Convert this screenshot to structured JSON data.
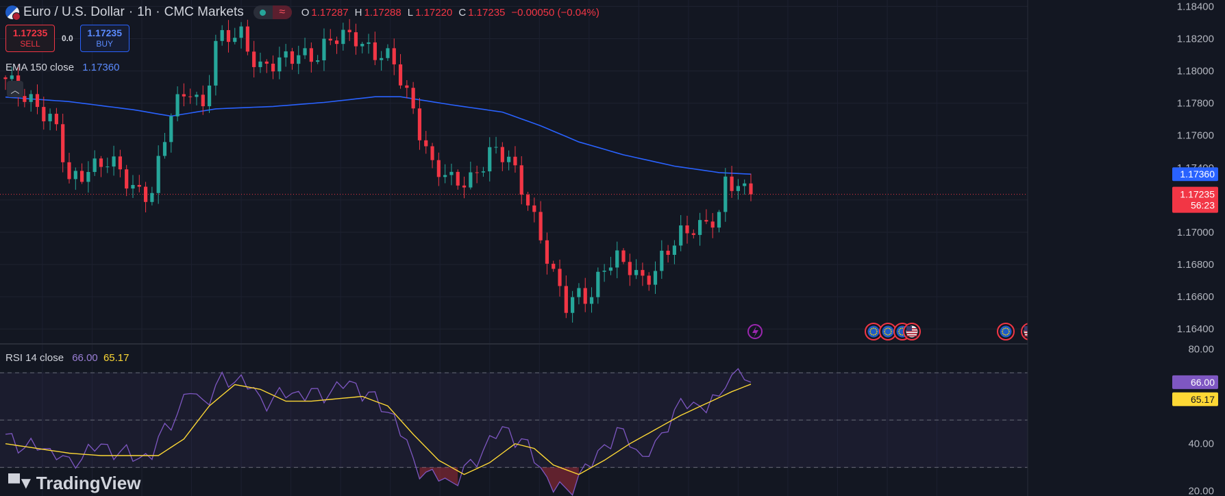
{
  "header": {
    "symbol": "Euro / U.S. Dollar",
    "interval": "1h",
    "source": "CMC Markets",
    "open_key": "O",
    "open": "1.17287",
    "high_key": "H",
    "high": "1.17288",
    "low_key": "L",
    "low": "1.17220",
    "close_key": "C",
    "close": "1.17235",
    "change": "−0.00050 (−0.04%)",
    "market_status": "open",
    "wave_icon": "≈"
  },
  "trade": {
    "sell_price": "1.17235",
    "sell_label": "SELL",
    "spread": "0.0",
    "buy_price": "1.17235",
    "buy_label": "BUY"
  },
  "ema": {
    "label": "EMA 150 close",
    "value": "1.17360"
  },
  "rsi": {
    "label": "RSI 14 close",
    "value": "66.00",
    "ma_value": "65.17"
  },
  "price_axis": {
    "ticks": [
      "1.18400",
      "1.18200",
      "1.18000",
      "1.17800",
      "1.17600",
      "1.17400",
      "1.17000",
      "1.16800",
      "1.16600",
      "1.16400"
    ],
    "current_label": "1.17235",
    "countdown": "56:23",
    "ema_label": "1.17360"
  },
  "rsi_axis": {
    "ticks": [
      "80.00",
      "40.00",
      "20.00"
    ]
  },
  "logo": {
    "text": "TradingView"
  },
  "colors": {
    "background": "#131722",
    "up": "#26a69a",
    "down": "#f23645",
    "ema": "#2962ff",
    "rsi": "#7e57c2",
    "rsi_ma": "#fdd835",
    "rsi_band": "#7e57c2"
  },
  "chart_data": [
    {
      "type": "candlestick",
      "title": "Euro / U.S. Dollar · 1h · CMC Markets",
      "ylim": [
        1.16316,
        1.1844
      ],
      "last_price": 1.17235,
      "n_bars": 118,
      "close_path": [
        [
          0,
          1.1792
        ],
        [
          5,
          1.1781
        ],
        [
          8,
          1.1762
        ],
        [
          10,
          1.173
        ],
        [
          13,
          1.1742
        ],
        [
          16,
          1.1743
        ],
        [
          20,
          1.1728
        ],
        [
          23,
          1.1726
        ],
        [
          26,
          1.1772
        ],
        [
          29,
          1.1791
        ],
        [
          31,
          1.1778
        ],
        [
          33,
          1.1816
        ],
        [
          37,
          1.1823
        ],
        [
          40,
          1.1803
        ],
        [
          43,
          1.1803
        ],
        [
          46,
          1.1812
        ],
        [
          49,
          1.1811
        ],
        [
          52,
          1.1819
        ],
        [
          55,
          1.1823
        ],
        [
          58,
          1.1811
        ],
        [
          61,
          1.1803
        ],
        [
          64,
          1.1778
        ],
        [
          67,
          1.174
        ],
        [
          70,
          1.173
        ],
        [
          73,
          1.1735
        ],
        [
          76,
          1.1748
        ],
        [
          79,
          1.1745
        ],
        [
          82,
          1.1722
        ],
        [
          84,
          1.1696
        ],
        [
          86,
          1.167
        ],
        [
          88,
          1.1655
        ],
        [
          90,
          1.1664
        ],
        [
          92,
          1.1662
        ],
        [
          94,
          1.1676
        ],
        [
          96,
          1.1682
        ],
        [
          98,
          1.1681
        ],
        [
          100,
          1.1672
        ],
        [
          102,
          1.1674
        ],
        [
          104,
          1.1687
        ],
        [
          106,
          1.17
        ],
        [
          108,
          1.1706
        ],
        [
          110,
          1.1704
        ],
        [
          112,
          1.1708
        ],
        [
          113,
          1.1728
        ],
        [
          115,
          1.1732
        ],
        [
          117,
          1.17235
        ]
      ],
      "ema150": [
        [
          0,
          1.17838
        ],
        [
          10,
          1.1781
        ],
        [
          20,
          1.1776
        ],
        [
          26,
          1.1772
        ],
        [
          33,
          1.17765
        ],
        [
          42,
          1.1778
        ],
        [
          50,
          1.17805
        ],
        [
          58,
          1.1784
        ],
        [
          62,
          1.1784
        ],
        [
          70,
          1.1779
        ],
        [
          78,
          1.17745
        ],
        [
          84,
          1.1766
        ],
        [
          90,
          1.1756
        ],
        [
          97,
          1.1748
        ],
        [
          105,
          1.1741
        ],
        [
          112,
          1.1737
        ],
        [
          117,
          1.1736
        ]
      ],
      "ema_last": 1.1736
    },
    {
      "type": "line",
      "title": "RSI 14 close",
      "ylim": [
        17.9,
        82.2
      ],
      "bands": {
        "upper": 70,
        "middle": 50,
        "lower": 30
      },
      "rsi": [
        [
          0,
          42
        ],
        [
          5,
          38
        ],
        [
          8,
          37
        ],
        [
          10,
          30
        ],
        [
          13,
          38
        ],
        [
          17,
          38
        ],
        [
          20,
          34
        ],
        [
          23,
          36
        ],
        [
          26,
          50
        ],
        [
          29,
          62
        ],
        [
          31,
          58
        ],
        [
          34,
          66
        ],
        [
          37,
          68
        ],
        [
          40,
          58
        ],
        [
          43,
          60
        ],
        [
          46,
          62
        ],
        [
          49,
          60
        ],
        [
          52,
          64
        ],
        [
          55,
          65
        ],
        [
          58,
          58
        ],
        [
          61,
          52
        ],
        [
          64,
          32
        ],
        [
          67,
          26
        ],
        [
          70,
          24
        ],
        [
          73,
          30
        ],
        [
          76,
          42
        ],
        [
          79,
          46
        ],
        [
          82,
          38
        ],
        [
          84,
          30
        ],
        [
          86,
          22
        ],
        [
          88,
          19
        ],
        [
          90,
          27
        ],
        [
          92,
          31
        ],
        [
          94,
          40
        ],
        [
          96,
          44
        ],
        [
          98,
          42
        ],
        [
          100,
          34
        ],
        [
          102,
          38
        ],
        [
          104,
          50
        ],
        [
          106,
          56
        ],
        [
          108,
          57
        ],
        [
          110,
          56
        ],
        [
          112,
          58
        ],
        [
          113,
          68
        ],
        [
          115,
          70
        ],
        [
          117,
          66
        ]
      ],
      "rsi_ma": [
        [
          0,
          40
        ],
        [
          5,
          38
        ],
        [
          10,
          36
        ],
        [
          15,
          35
        ],
        [
          20,
          35
        ],
        [
          24,
          35
        ],
        [
          28,
          42
        ],
        [
          32,
          56
        ],
        [
          36,
          65
        ],
        [
          40,
          63
        ],
        [
          44,
          58
        ],
        [
          48,
          58
        ],
        [
          52,
          59
        ],
        [
          56,
          60
        ],
        [
          60,
          56
        ],
        [
          64,
          44
        ],
        [
          68,
          33
        ],
        [
          72,
          27
        ],
        [
          76,
          32
        ],
        [
          80,
          40
        ],
        [
          83,
          38
        ],
        [
          86,
          31
        ],
        [
          90,
          27
        ],
        [
          94,
          33
        ],
        [
          98,
          40
        ],
        [
          102,
          46
        ],
        [
          106,
          52
        ],
        [
          110,
          57
        ],
        [
          114,
          62
        ],
        [
          117,
          65.17
        ]
      ],
      "last_rsi": 66.0,
      "last_ma": 65.17
    }
  ]
}
